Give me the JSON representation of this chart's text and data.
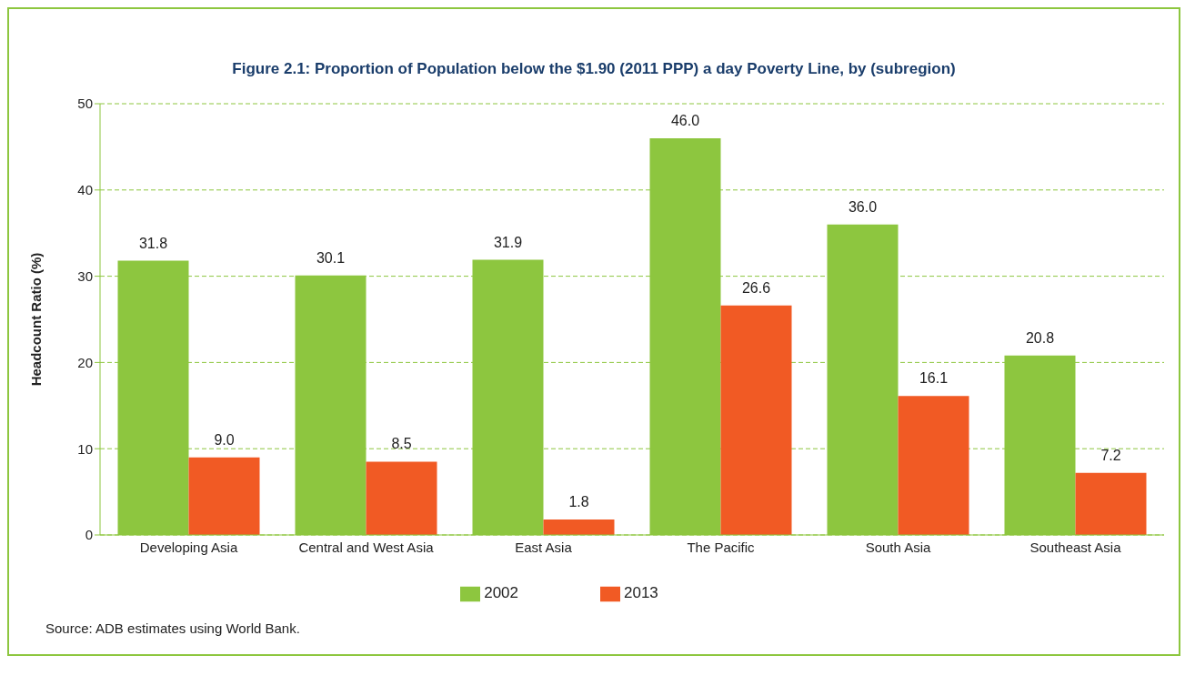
{
  "chart_data": {
    "type": "bar",
    "title": "Figure 2.1:  Proportion of Population below the $1.90 (2011 PPP) a day Poverty Line, by (subregion)",
    "ylabel": "Headcount Ratio (%)",
    "categories": [
      "Developing Asia",
      "Central and West Asia",
      "East Asia",
      "The Pacific",
      "South Asia",
      "Southeast Asia"
    ],
    "series": [
      {
        "name": "2002",
        "color": "#8dc63f",
        "values": [
          31.8,
          30.1,
          31.9,
          46.0,
          36.0,
          20.8
        ]
      },
      {
        "name": "2013",
        "color": "#f15a24",
        "values": [
          9.0,
          8.5,
          1.8,
          26.6,
          16.1,
          7.2
        ]
      }
    ],
    "value_labels": [
      [
        "31.8",
        "30.1",
        "31.9",
        "46.0",
        "36.0",
        "20.8"
      ],
      [
        "9.0",
        "8.5",
        "1.8",
        "26.6",
        "16.1",
        "7.2"
      ]
    ],
    "ylim": [
      0,
      50
    ],
    "yticks": [
      0,
      10,
      20,
      30,
      40,
      50
    ],
    "grid": "y",
    "legend": "bottom",
    "annotations": [
      "Source:  ADB estimates using World Bank."
    ]
  }
}
